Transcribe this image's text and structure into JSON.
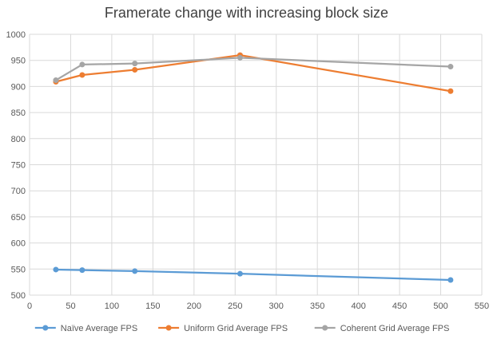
{
  "chart_data": {
    "type": "line",
    "title": "Framerate change with increasing block size",
    "xlabel": "",
    "ylabel": "",
    "xlim": [
      0,
      550
    ],
    "ylim": [
      500,
      1000
    ],
    "xticks": [
      0,
      50,
      100,
      150,
      200,
      250,
      300,
      350,
      400,
      450,
      500,
      550
    ],
    "yticks": [
      500,
      550,
      600,
      650,
      700,
      750,
      800,
      850,
      900,
      950,
      1000
    ],
    "grid": true,
    "legend_position": "bottom",
    "x": [
      32,
      64,
      128,
      256,
      512
    ],
    "series": [
      {
        "name": "Naïve Average FPS",
        "color": "#5B9BD5",
        "values": [
          549,
          548,
          546,
          541,
          529
        ]
      },
      {
        "name": "Uniform Grid Average FPS",
        "color": "#ED7D31",
        "values": [
          909,
          922,
          932,
          960,
          891
        ]
      },
      {
        "name": "Coherent Grid Average FPS",
        "color": "#A5A5A5",
        "values": [
          912,
          942,
          944,
          955,
          938
        ]
      }
    ]
  }
}
